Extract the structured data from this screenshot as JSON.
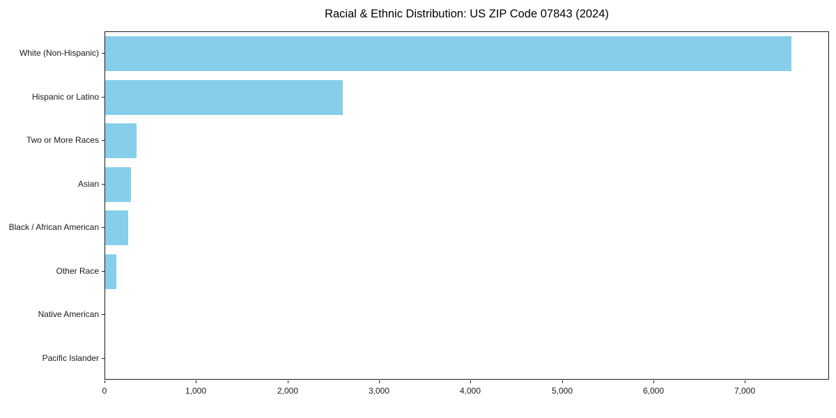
{
  "chart_data": {
    "type": "bar",
    "orientation": "horizontal",
    "title": "Racial & Ethnic Distribution: US ZIP Code 07843 (2024)",
    "xlabel": "",
    "ylabel": "",
    "categories": [
      "White (Non-Hispanic)",
      "Hispanic or Latino",
      "Two or More Races",
      "Asian",
      "Black / African American",
      "Other Race",
      "Native American",
      "Pacific Islander"
    ],
    "values": [
      7500,
      2600,
      340,
      280,
      250,
      120,
      0,
      0
    ],
    "xlim": [
      0,
      7920
    ],
    "xticks": [
      0,
      1000,
      2000,
      3000,
      4000,
      5000,
      6000,
      7000
    ],
    "xtick_labels": [
      "0",
      "1,000",
      "2,000",
      "3,000",
      "4,000",
      "5,000",
      "6,000",
      "7,000"
    ],
    "bar_color": "#87CEEB",
    "grid": false,
    "legend": null
  }
}
